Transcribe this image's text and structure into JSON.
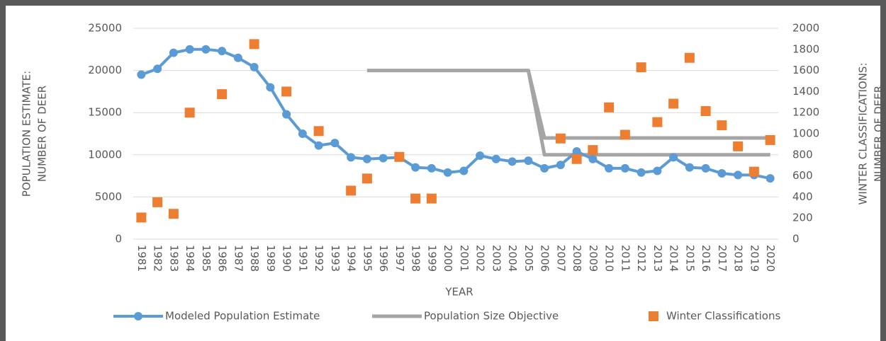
{
  "chart_data": {
    "type": "line",
    "x_label": "YEAR",
    "y_label": [
      "POPULATION ESTIMATE:",
      "NUMBER OF DEER"
    ],
    "y2_label": [
      "WINTER CLASSIFICATIONS:",
      "NUMBER OF DEER"
    ],
    "categories": [
      "1981",
      "1982",
      "1983",
      "1984",
      "1985",
      "1986",
      "1987",
      "1988",
      "1989",
      "1990",
      "1991",
      "1992",
      "1993",
      "1994",
      "1995",
      "1996",
      "1997",
      "1998",
      "1999",
      "2000",
      "2001",
      "2002",
      "2003",
      "2004",
      "2005",
      "2006",
      "2007",
      "2008",
      "2009",
      "2010",
      "2011",
      "2012",
      "2013",
      "2014",
      "2015",
      "2016",
      "2017",
      "2018",
      "2019",
      "2020"
    ],
    "ylim": [
      0,
      25000
    ],
    "yticks": [
      0,
      5000,
      10000,
      15000,
      20000,
      25000
    ],
    "y2lim": [
      0,
      2000
    ],
    "y2ticks": [
      0,
      200,
      400,
      600,
      800,
      1000,
      1200,
      1400,
      1600,
      1800,
      2000
    ],
    "grid": true,
    "legend": "bottom",
    "series": [
      {
        "name": "Modeled Population Estimate",
        "color": "#5b9bd5",
        "style": "line-marker",
        "values": [
          19500,
          20200,
          22100,
          22500,
          22500,
          22300,
          21500,
          20400,
          18000,
          14800,
          12500,
          11100,
          11400,
          9700,
          9500,
          9600,
          9700,
          8500,
          8400,
          7900,
          8100,
          9900,
          9500,
          9200,
          9300,
          8400,
          8800,
          10400,
          9500,
          8400,
          8400,
          7900,
          8100,
          9700,
          8500,
          8400,
          7800,
          7600,
          7600,
          7200
        ]
      },
      {
        "name": "Population Size Objective",
        "color": "#a5a5a5",
        "style": "line",
        "values": [
          null,
          null,
          null,
          null,
          null,
          null,
          null,
          null,
          null,
          null,
          null,
          null,
          null,
          null,
          20000,
          20000,
          20000,
          20000,
          20000,
          20000,
          20000,
          20000,
          20000,
          20000,
          20000,
          10000,
          10000,
          10000,
          10000,
          10000,
          10000,
          10000,
          10000,
          10000,
          10000,
          10000,
          10000,
          10000,
          10000,
          10000
        ]
      },
      {
        "color": "#a5a5a5",
        "style": "line",
        "values": [
          null,
          null,
          null,
          null,
          null,
          null,
          null,
          null,
          null,
          null,
          null,
          null,
          null,
          null,
          null,
          null,
          null,
          null,
          null,
          null,
          null,
          null,
          null,
          null,
          20000,
          12000,
          12000,
          12000,
          12000,
          12000,
          12000,
          12000,
          12000,
          12000,
          12000,
          12000,
          12000,
          12000,
          12000,
          12000
        ]
      },
      {
        "name": "Winter Classifications",
        "color": "#ed7d31",
        "style": "square",
        "axis": "y2",
        "values": [
          205,
          350,
          240,
          1200,
          null,
          1375,
          null,
          1850,
          null,
          1400,
          null,
          1025,
          null,
          460,
          575,
          null,
          780,
          385,
          385,
          null,
          null,
          null,
          null,
          null,
          null,
          null,
          955,
          760,
          845,
          1250,
          990,
          1630,
          1110,
          1285,
          1720,
          1215,
          1080,
          880,
          640,
          940
        ]
      }
    ]
  }
}
